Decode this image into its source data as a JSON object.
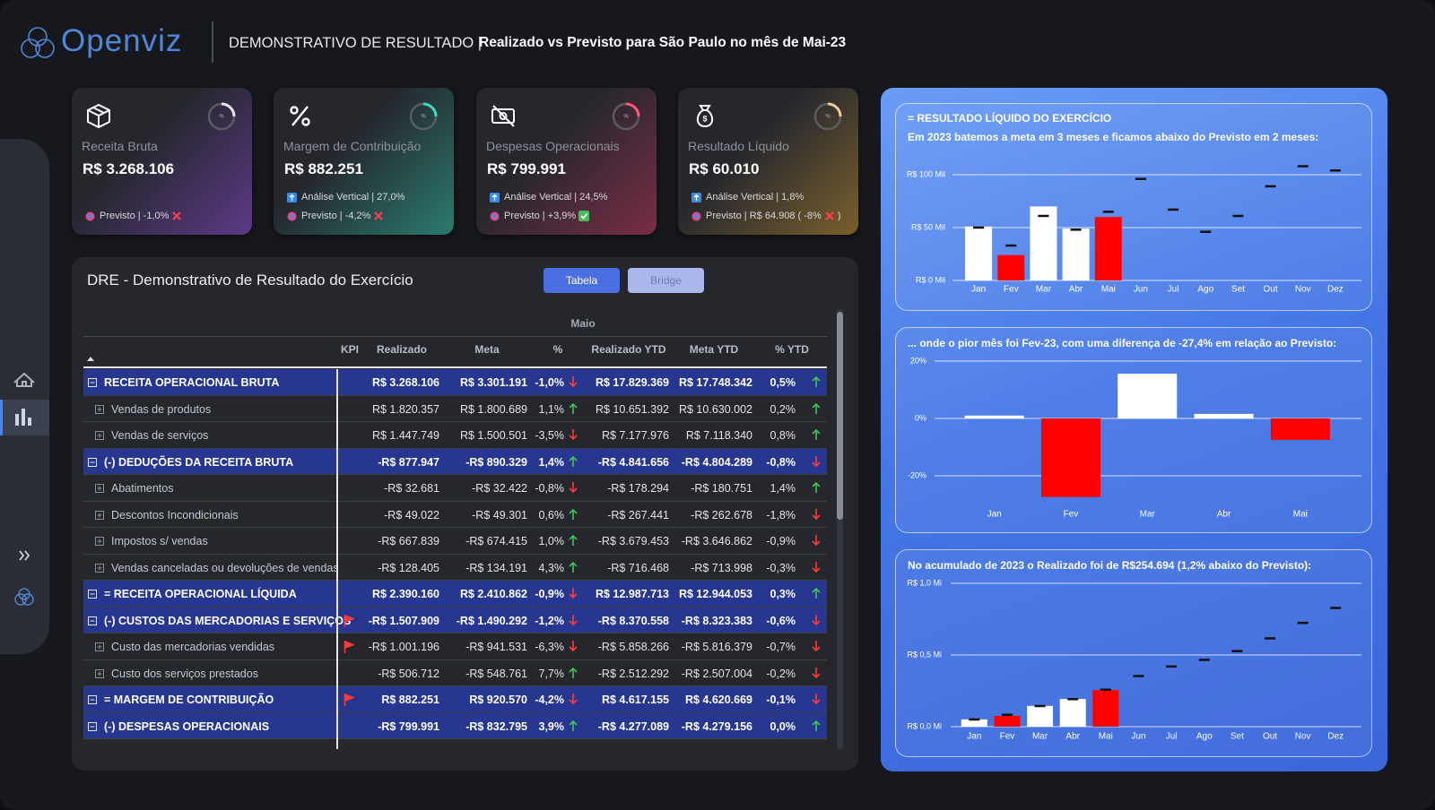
{
  "header": {
    "logo": "Openviz",
    "title": "DEMONSTRATIVO DE RESULTADO |",
    "subtitle": "Realizado vs Previsto para São Paulo no mês de Mai-23"
  },
  "kpi_cards": [
    {
      "label": "Receita Bruta",
      "value": "R$ 3.268.106",
      "previsto": "Previsto | -1,0%",
      "status": "miss",
      "gauge_label": "%",
      "gauge_color": "#e6e6e6",
      "accent_color": "#6a3e9e"
    },
    {
      "label": "Margem de Contribuição",
      "value": "R$ 882.251",
      "vertical": "Análise Vertical | 27,0%",
      "previsto": "Previsto | -4,2%",
      "status": "miss",
      "gauge_label": "%",
      "gauge_color": "#3fd9c0",
      "accent_color": "#2b8f7e"
    },
    {
      "label": "Despesas Operacionais",
      "value": "R$ 799.991",
      "vertical": "Análise Vertical | 24,5%",
      "previsto": "Previsto | +3,9%",
      "status": "hit",
      "gauge_label": "%",
      "gauge_color": "#ff5a7a",
      "accent_color": "#8f2e4c"
    },
    {
      "label": "Resultado Líquido",
      "value": "R$ 60.010",
      "vertical": "Análise Vertical | 1,8%",
      "previsto": "Previsto | R$ 64.908 (  -8%",
      "previsto_suffix": ")",
      "status": "miss",
      "gauge_label": "%",
      "gauge_color": "#f2c9a0",
      "accent_color": "#8f6d2c"
    }
  ],
  "table": {
    "title": "DRE - Demonstrativo de Resultado do Exercício",
    "buttons": [
      {
        "label": "Tabela",
        "active": true
      },
      {
        "label": "Bridge",
        "active": false
      }
    ],
    "group_header": "Maio",
    "columns": [
      "KPI",
      "Realizado",
      "Meta",
      "%",
      "Realizado YTD",
      "Meta YTD",
      "% YTD"
    ],
    "rows": [
      {
        "label": "RECEITA OPERACIONAL BRUTA",
        "level": 0,
        "flag": false,
        "cells": [
          "R$ 3.268.106",
          "R$ 3.301.191",
          "-1,0%",
          "R$ 17.829.369",
          "R$ 17.748.342",
          "0,5%"
        ],
        "arrows": [
          "down",
          "up"
        ]
      },
      {
        "label": "Vendas de produtos",
        "level": 1,
        "flag": false,
        "cells": [
          "R$ 1.820.357",
          "R$ 1.800.689",
          "1,1%",
          "R$ 10.651.392",
          "R$ 10.630.002",
          "0,2%"
        ],
        "arrows": [
          "up",
          "up"
        ]
      },
      {
        "label": "Vendas de serviços",
        "level": 1,
        "flag": false,
        "cells": [
          "R$ 1.447.749",
          "R$ 1.500.501",
          "-3,5%",
          "R$ 7.177.976",
          "R$ 7.118.340",
          "0,8%"
        ],
        "arrows": [
          "down",
          "up"
        ]
      },
      {
        "label": "(-) DEDUÇÕES DA RECEITA BRUTA",
        "level": 0,
        "flag": false,
        "cells": [
          "-R$ 877.947",
          "-R$ 890.329",
          "1,4%",
          "-R$ 4.841.656",
          "-R$ 4.804.289",
          "-0,8%"
        ],
        "arrows": [
          "up",
          "down"
        ]
      },
      {
        "label": "Abatimentos",
        "level": 1,
        "flag": false,
        "cells": [
          "-R$ 32.681",
          "-R$ 32.422",
          "-0,8%",
          "-R$ 178.294",
          "-R$ 180.751",
          "1,4%"
        ],
        "arrows": [
          "down",
          "up"
        ]
      },
      {
        "label": "Descontos Incondicionais",
        "level": 1,
        "flag": false,
        "cells": [
          "-R$ 49.022",
          "-R$ 49.301",
          "0,6%",
          "-R$ 267.441",
          "-R$ 262.678",
          "-1,8%"
        ],
        "arrows": [
          "up",
          "down"
        ]
      },
      {
        "label": "Impostos s/ vendas",
        "level": 1,
        "flag": false,
        "cells": [
          "-R$ 667.839",
          "-R$ 674.415",
          "1,0%",
          "-R$ 3.679.453",
          "-R$ 3.646.862",
          "-0,9%"
        ],
        "arrows": [
          "up",
          "down"
        ]
      },
      {
        "label": "Vendas canceladas ou devoluções de vendas",
        "level": 1,
        "flag": false,
        "cells": [
          "-R$ 128.405",
          "-R$ 134.191",
          "4,3%",
          "-R$ 716.468",
          "-R$ 713.998",
          "-0,3%"
        ],
        "arrows": [
          "up",
          "down"
        ]
      },
      {
        "label": "= RECEITA OPERACIONAL LÍQUIDA",
        "level": 0,
        "flag": false,
        "cells": [
          "R$ 2.390.160",
          "R$ 2.410.862",
          "-0,9%",
          "R$ 12.987.713",
          "R$ 12.944.053",
          "0,3%"
        ],
        "arrows": [
          "down",
          "up"
        ]
      },
      {
        "label": "(-) CUSTOS DAS MERCADORIAS E SERVIÇOS",
        "level": 0,
        "flag": true,
        "cells": [
          "-R$ 1.507.909",
          "-R$ 1.490.292",
          "-1,2%",
          "-R$ 8.370.558",
          "-R$ 8.323.383",
          "-0,6%"
        ],
        "arrows": [
          "down",
          "down"
        ]
      },
      {
        "label": "Custo das mercadorias vendidas",
        "level": 1,
        "flag": true,
        "cells": [
          "-R$ 1.001.196",
          "-R$ 941.531",
          "-6,3%",
          "-R$ 5.858.266",
          "-R$ 5.816.379",
          "-0,7%"
        ],
        "arrows": [
          "down",
          "down"
        ]
      },
      {
        "label": "Custo dos serviços prestados",
        "level": 1,
        "flag": false,
        "cells": [
          "-R$ 506.712",
          "-R$ 548.761",
          "7,7%",
          "-R$ 2.512.292",
          "-R$ 2.507.004",
          "-0,2%"
        ],
        "arrows": [
          "up",
          "down"
        ]
      },
      {
        "label": "= MARGEM DE CONTRIBUIÇÃO",
        "level": 0,
        "flag": true,
        "cells": [
          "R$ 882.251",
          "R$ 920.570",
          "-4,2%",
          "R$ 4.617.155",
          "R$ 4.620.669",
          "-0,1%"
        ],
        "arrows": [
          "down",
          "down"
        ]
      },
      {
        "label": "(-) DESPESAS OPERACIONAIS",
        "level": 0,
        "flag": false,
        "cells": [
          "-R$ 799.991",
          "-R$ 832.795",
          "3,9%",
          "-R$ 4.277.089",
          "-R$ 4.279.156",
          "0,0%"
        ],
        "arrows": [
          "up",
          "up"
        ]
      }
    ]
  },
  "chart_data": [
    {
      "type": "bar",
      "title": "= RESULTADO LÍQUIDO DO EXERCÍCIO",
      "subtitle": "Em 2023 batemos a meta em 3 meses e ficamos abaixo do Previsto em 2 meses:",
      "categories": [
        "Jan",
        "Fev",
        "Mar",
        "Abr",
        "Mai",
        "Jun",
        "Jul",
        "Ago",
        "Set",
        "Out",
        "Nov",
        "Dez"
      ],
      "series": [
        {
          "kind": "bar",
          "colors": [
            "#ffffff",
            "#ff0000",
            "#ffffff",
            "#ffffff",
            "#ff0000",
            null,
            null,
            null,
            null,
            null,
            null,
            null
          ],
          "values": [
            51,
            24,
            70,
            49,
            60.01,
            null,
            null,
            null,
            null,
            null,
            null,
            null
          ]
        },
        {
          "kind": "marker",
          "color": "#111111",
          "values": [
            50,
            33,
            61,
            48,
            64.908,
            96,
            67,
            46,
            61,
            89,
            108,
            104
          ]
        }
      ],
      "ylim": [
        0,
        112
      ],
      "yticks": [
        {
          "value": 0,
          "label": "R$ 0 Mil"
        },
        {
          "value": 50,
          "label": "R$ 50 Mil"
        },
        {
          "value": 100,
          "label": "R$ 100 Mil"
        }
      ],
      "grid": true
    },
    {
      "type": "bar",
      "title": "... onde o pior mês foi Fev-23, com uma diferença de -27,4% em relação ao Previsto:",
      "categories": [
        "Jan",
        "Fev",
        "Mar",
        "Abr",
        "Mai"
      ],
      "series": [
        {
          "kind": "bar",
          "colors": [
            "#ffffff",
            "#ff0000",
            "#ffffff",
            "#ffffff",
            "#ff0000"
          ],
          "values": [
            1,
            -27.4,
            15.6,
            1.6,
            -7.5
          ]
        }
      ],
      "ylim": [
        -29,
        22
      ],
      "yticks": [
        {
          "value": -20,
          "label": "-20%"
        },
        {
          "value": 0,
          "label": "0%"
        },
        {
          "value": 20,
          "label": "20%"
        }
      ],
      "grid": true
    },
    {
      "type": "bar",
      "title": "No acumulado de 2023 o Realizado foi de R$254.694 (1,2% abaixo do Previsto):",
      "categories": [
        "Jan",
        "Fev",
        "Mar",
        "Abr",
        "Mai",
        "Jun",
        "Jul",
        "Ago",
        "Set",
        "Out",
        "Nov",
        "Dez"
      ],
      "series": [
        {
          "kind": "bar",
          "colors": [
            "#ffffff",
            "#ff0000",
            "#ffffff",
            "#ffffff",
            "#ff0000",
            null,
            null,
            null,
            null,
            null,
            null,
            null
          ],
          "values": [
            0.051,
            0.075,
            0.145,
            0.193,
            0.255,
            null,
            null,
            null,
            null,
            null,
            null,
            null
          ]
        },
        {
          "kind": "marker",
          "color": "#111111",
          "values": [
            0.05,
            0.083,
            0.144,
            0.192,
            0.258,
            0.353,
            0.42,
            0.466,
            0.527,
            0.616,
            0.724,
            0.828
          ]
        }
      ],
      "ylim": [
        0,
        1.05
      ],
      "yticks": [
        {
          "value": 0,
          "label": "R$ 0,0 Mi"
        },
        {
          "value": 0.5,
          "label": "R$ 0,5 Mi"
        },
        {
          "value": 1,
          "label": "R$ 1,0 Mi"
        }
      ],
      "grid": true
    }
  ]
}
